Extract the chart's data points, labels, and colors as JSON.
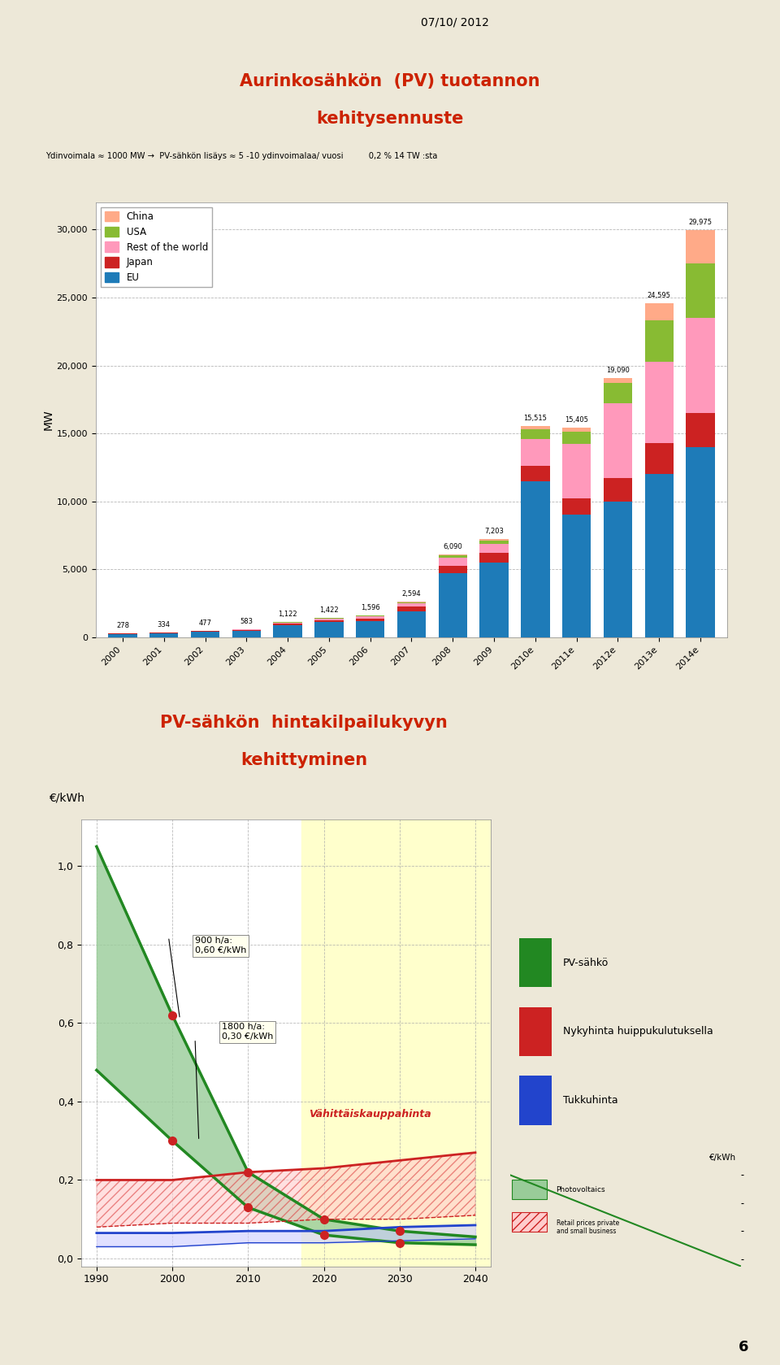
{
  "page_bg": "#ede8d8",
  "date_text": "07/10/ 2012",
  "page_num": "6",
  "chart1": {
    "title_line1": "Aurinkosähkön  (PV) tuotannon",
    "title_line2": "kehitysennuste",
    "subtitle": "Ydinvoimala ≈ 1000 MW →  PV-sähkön lisäys ≈ 5 -10 ydinvoimalaa/ vuosi          0,2 % 14 TW :sta",
    "ylabel": "MW",
    "years": [
      "2000",
      "2001",
      "2002",
      "2003",
      "2004",
      "2005",
      "2006",
      "2007",
      "2008",
      "2009",
      "2010e",
      "2011e",
      "2012e",
      "2013e",
      "2014e"
    ],
    "totals": [
      278,
      334,
      477,
      583,
      1122,
      1422,
      1596,
      2594,
      6090,
      7203,
      15515,
      15405,
      19090,
      24595,
      29975
    ],
    "eu": [
      240,
      290,
      400,
      490,
      900,
      1100,
      1200,
      1900,
      4700,
      5500,
      11500,
      9000,
      10000,
      12000,
      14000
    ],
    "japan": [
      20,
      25,
      40,
      55,
      110,
      150,
      180,
      350,
      550,
      700,
      1100,
      1200,
      1700,
      2300,
      2500
    ],
    "rotw": [
      10,
      10,
      25,
      25,
      80,
      120,
      150,
      250,
      600,
      650,
      2000,
      4000,
      5500,
      6000,
      7000
    ],
    "usa": [
      7,
      7,
      10,
      10,
      25,
      42,
      56,
      80,
      180,
      280,
      700,
      900,
      1500,
      3000,
      4000
    ],
    "china": [
      1,
      2,
      2,
      3,
      7,
      10,
      10,
      14,
      60,
      73,
      215,
      305,
      390,
      1295,
      2475
    ],
    "colors": {
      "eu": "#1e7bb8",
      "japan": "#cc2222",
      "rotw": "#ff99bb",
      "usa": "#88bb33",
      "china": "#ffaa88"
    },
    "ylim": [
      0,
      32000
    ],
    "yticks": [
      0,
      5000,
      10000,
      15000,
      20000,
      25000,
      30000
    ],
    "chart_bg": "#ffffff",
    "box_bg": "#c8d870",
    "title_color": "#cc2200"
  },
  "chart2": {
    "title_line1": "PV-sähkön  hintakilpailukyvyn",
    "title_line2": "kehittyminen",
    "ylabel": "€/kWh",
    "xlim": [
      1988,
      2042
    ],
    "ylim": [
      -0.02,
      1.12
    ],
    "yticks": [
      0.0,
      0.2,
      0.4,
      0.6,
      0.8,
      1.0
    ],
    "ytick_labels": [
      "0,0",
      "0,2",
      "0,4",
      "0,6",
      "0,8",
      "1,0"
    ],
    "xticks": [
      1990,
      2000,
      2010,
      2020,
      2030,
      2040
    ],
    "pv_upper_x": [
      1990,
      2000,
      2010,
      2020,
      2030,
      2040
    ],
    "pv_upper_y": [
      1.05,
      0.62,
      0.22,
      0.1,
      0.07,
      0.055
    ],
    "pv_lower_x": [
      1990,
      2000,
      2010,
      2020,
      2030,
      2040
    ],
    "pv_lower_y": [
      0.48,
      0.3,
      0.13,
      0.06,
      0.04,
      0.035
    ],
    "retail_upper_x": [
      1990,
      2000,
      2010,
      2020,
      2030,
      2040
    ],
    "retail_upper_y": [
      0.2,
      0.2,
      0.22,
      0.23,
      0.25,
      0.27
    ],
    "retail_lower_x": [
      1990,
      2000,
      2010,
      2020,
      2030,
      2040
    ],
    "retail_lower_y": [
      0.08,
      0.09,
      0.09,
      0.1,
      0.1,
      0.11
    ],
    "wholesale_upper_x": [
      1990,
      2000,
      2010,
      2020,
      2030,
      2040
    ],
    "wholesale_upper_y": [
      0.065,
      0.065,
      0.07,
      0.07,
      0.08,
      0.085
    ],
    "wholesale_lower_x": [
      1990,
      2000,
      2010,
      2020,
      2030,
      2040
    ],
    "wholesale_lower_y": [
      0.03,
      0.03,
      0.04,
      0.04,
      0.045,
      0.05
    ],
    "label_pv": "PV-sähkö",
    "label_retail": "Nykyhinta huippukulutuksella",
    "label_wholesale": "Tukkuhinta",
    "annotation_retail": "Vähittäiskauppahinta",
    "highlight_xmin": 2017,
    "chart_bg": "#ffffff",
    "box_bg": "#c8d870",
    "title_color": "#cc2200",
    "pv_color": "#228822",
    "retail_color": "#cc2222",
    "wholesale_color": "#2244cc",
    "pv_fill_color": "#99cc99",
    "retail_fill_color": "#ffcccc",
    "wholesale_fill_color": "#ccccff",
    "highlight_color": "#ffffcc",
    "legend_box_color": "#FF8C00"
  }
}
